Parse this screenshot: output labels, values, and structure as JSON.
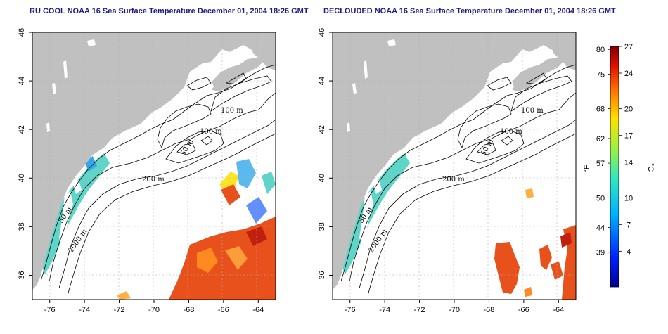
{
  "panels": [
    {
      "id": "left",
      "title": "RU COOL NOAA 16 Sea Surface Temperature December 01, 2004 18:26 GMT"
    },
    {
      "id": "right",
      "title": "DECLOUDED NOAA 16 Sea Surface Temperature December 01, 2004 18:26 GMT"
    }
  ],
  "axes": {
    "lon_ticks": [
      "-76",
      "-74",
      "-72",
      "-70",
      "-68",
      "-66",
      "-64"
    ],
    "lat_ticks": [
      "46",
      "44",
      "42",
      "40",
      "38",
      "36"
    ],
    "lon_range": [
      -77.0,
      -63.0
    ],
    "lat_range": [
      35.0,
      46.0
    ]
  },
  "contour_labels": [
    "100 m",
    "100 m",
    "50 m",
    "200 m",
    "50 m",
    "2000 m"
  ],
  "colorbar": {
    "fahrenheit_ticks": [
      "80",
      "75",
      "68",
      "62",
      "57",
      "50",
      "44",
      "39"
    ],
    "celsius_ticks": [
      "27",
      "24",
      "20",
      "17",
      "14",
      "10",
      "7",
      "4"
    ],
    "fahrenheit_label": "°F",
    "celsius_label": "°C",
    "range_c": [
      0,
      27
    ]
  },
  "colors": {
    "land": "#c0c0c0",
    "title": "#1a1a8c",
    "warm": "#e8501c",
    "coastal": "#5fd4c8",
    "gridline": "#b0b0b0"
  }
}
